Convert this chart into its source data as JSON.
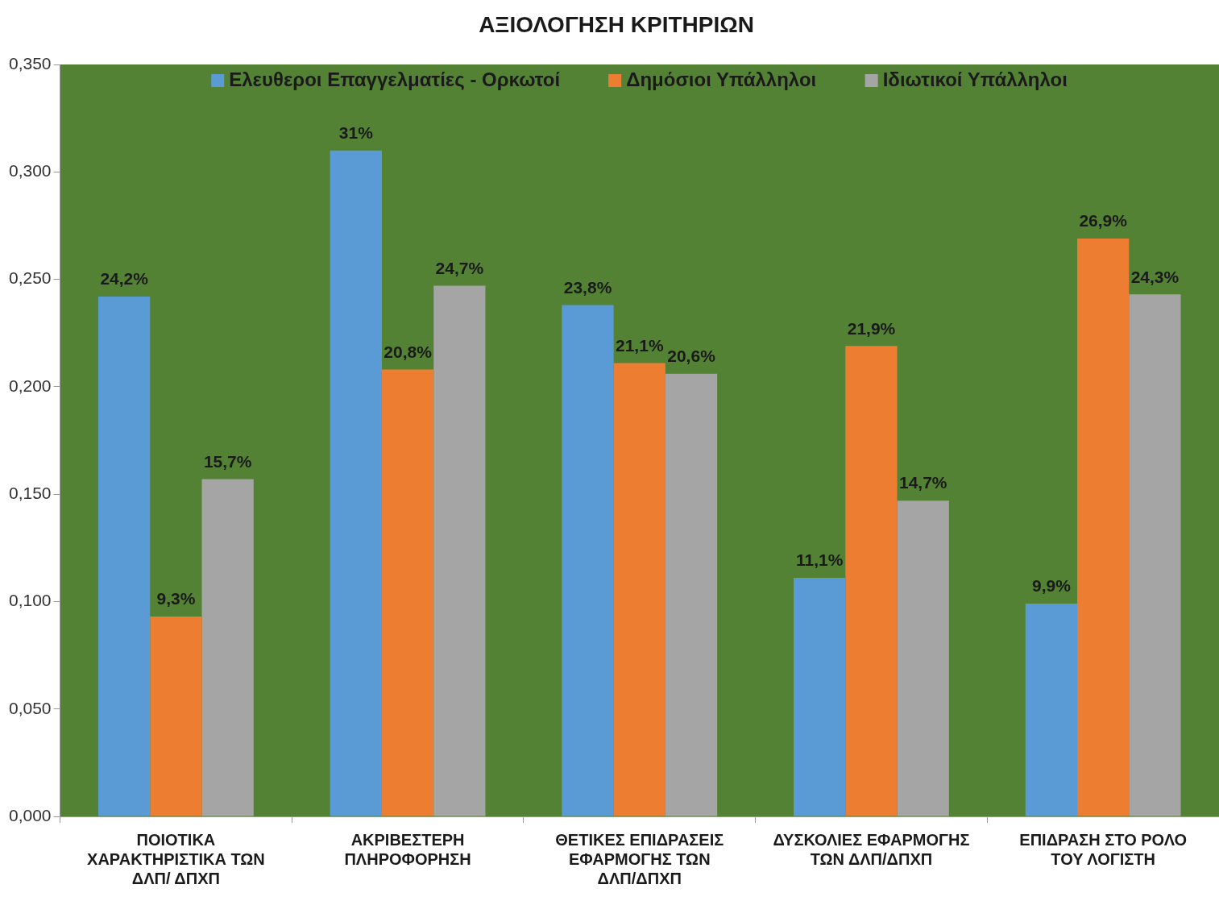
{
  "chart_data": {
    "type": "bar",
    "title": "ΑΞΙΟΛΟΓΗΣΗ ΚΡΙΤΗΡΙΩΝ",
    "categories": [
      "ΠΟΙΟΤΙΚΑ ΧΑΡΑΚΤΗΡΙΣΤΙΚΑ ΤΩΝ ΔΛΠ/ ΔΠΧΠ",
      "ΑΚΡΙΒΕΣΤΕΡΗ ΠΛΗΡΟΦΟΡΗΣΗ",
      "ΘΕΤΙΚΕΣ ΕΠΙΔΡΑΣΕΙΣ ΕΦΑΡΜΟΓΗΣ ΤΩΝ ΔΛΠ/ΔΠΧΠ",
      "ΔΥΣΚΟΛΙΕΣ ΕΦΑΡΜΟΓΗΣ ΤΩΝ ΔΛΠ/ΔΠΧΠ",
      "ΕΠΙΔΡΑΣΗ ΣΤΟ ΡΟΛΟ ΤΟΥ ΛΟΓΙΣΤΗ"
    ],
    "series": [
      {
        "name": "Ελευθεροι Επαγγελματίες - Ορκωτοί",
        "color": "#5b9bd5",
        "values": [
          0.242,
          0.31,
          0.238,
          0.111,
          0.099
        ],
        "value_labels": [
          "24,2%",
          "31%",
          "23,8%",
          "11,1%",
          "9,9%"
        ]
      },
      {
        "name": "Δημόσιοι Υπάλληλοι",
        "color": "#ed7d31",
        "values": [
          0.093,
          0.208,
          0.211,
          0.219,
          0.269
        ],
        "value_labels": [
          "9,3%",
          "20,8%",
          "21,1%",
          "21,9%",
          "26,9%"
        ]
      },
      {
        "name": "Ιδιωτικοί Υπάλληλοι",
        "color": "#a5a5a5",
        "values": [
          0.157,
          0.247,
          0.206,
          0.147,
          0.243
        ],
        "value_labels": [
          "15,7%",
          "24,7%",
          "20,6%",
          "14,7%",
          "24,3%"
        ]
      }
    ],
    "ylim": [
      0,
      0.35
    ],
    "yticks": [
      {
        "value": 0,
        "label": "0,000"
      },
      {
        "value": 0.05,
        "label": "0,050"
      },
      {
        "value": 0.1,
        "label": "0,100"
      },
      {
        "value": 0.15,
        "label": "0,150"
      },
      {
        "value": 0.2,
        "label": "0,200"
      },
      {
        "value": 0.25,
        "label": "0,250"
      },
      {
        "value": 0.3,
        "label": "0,300"
      },
      {
        "value": 0.35,
        "label": "0,350"
      }
    ],
    "grid": false,
    "legend": "top"
  }
}
